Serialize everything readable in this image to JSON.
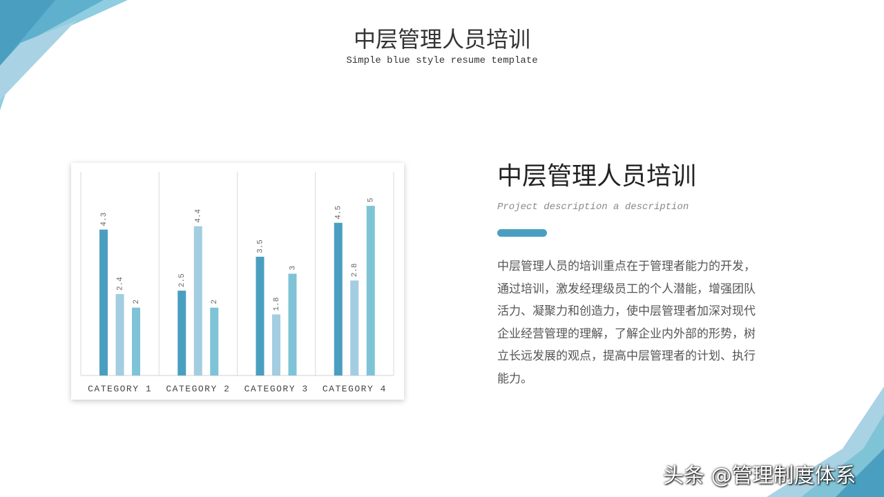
{
  "header": {
    "title": "中层管理人员培训",
    "subtitle": "Simple blue style resume template"
  },
  "content": {
    "heading": "中层管理人员培训",
    "description": "Project description a description",
    "body": "中层管理人员的培训重点在于管理者能力的开发，通过培训，激发经理级员工的个人潜能，增强团队活力、凝聚力和创造力，使中层管理者加深对现代企业经营管理的理解，了解企业内外部的形势，树立长远发展的观点，提高中层管理者的计划、执行能力。",
    "accent_color": "#4a9fc0"
  },
  "watermark": "头条 @管理制度体系",
  "chart_data": {
    "type": "bar",
    "categories": [
      "CATEGORY 1",
      "CATEGORY 2",
      "CATEGORY 3",
      "CATEGORY 4"
    ],
    "series": [
      {
        "values": [
          4.3,
          2.5,
          3.5,
          4.5
        ],
        "color": "#4a9fc0"
      },
      {
        "values": [
          2.4,
          4.4,
          1.8,
          2.8
        ],
        "color": "#a3cde0"
      },
      {
        "values": [
          2,
          2,
          3,
          5
        ],
        "color": "#7fc3d6"
      }
    ],
    "ylim": [
      0,
      6
    ],
    "grid": "vertical category separators",
    "data_labels": true,
    "legend": "none"
  }
}
